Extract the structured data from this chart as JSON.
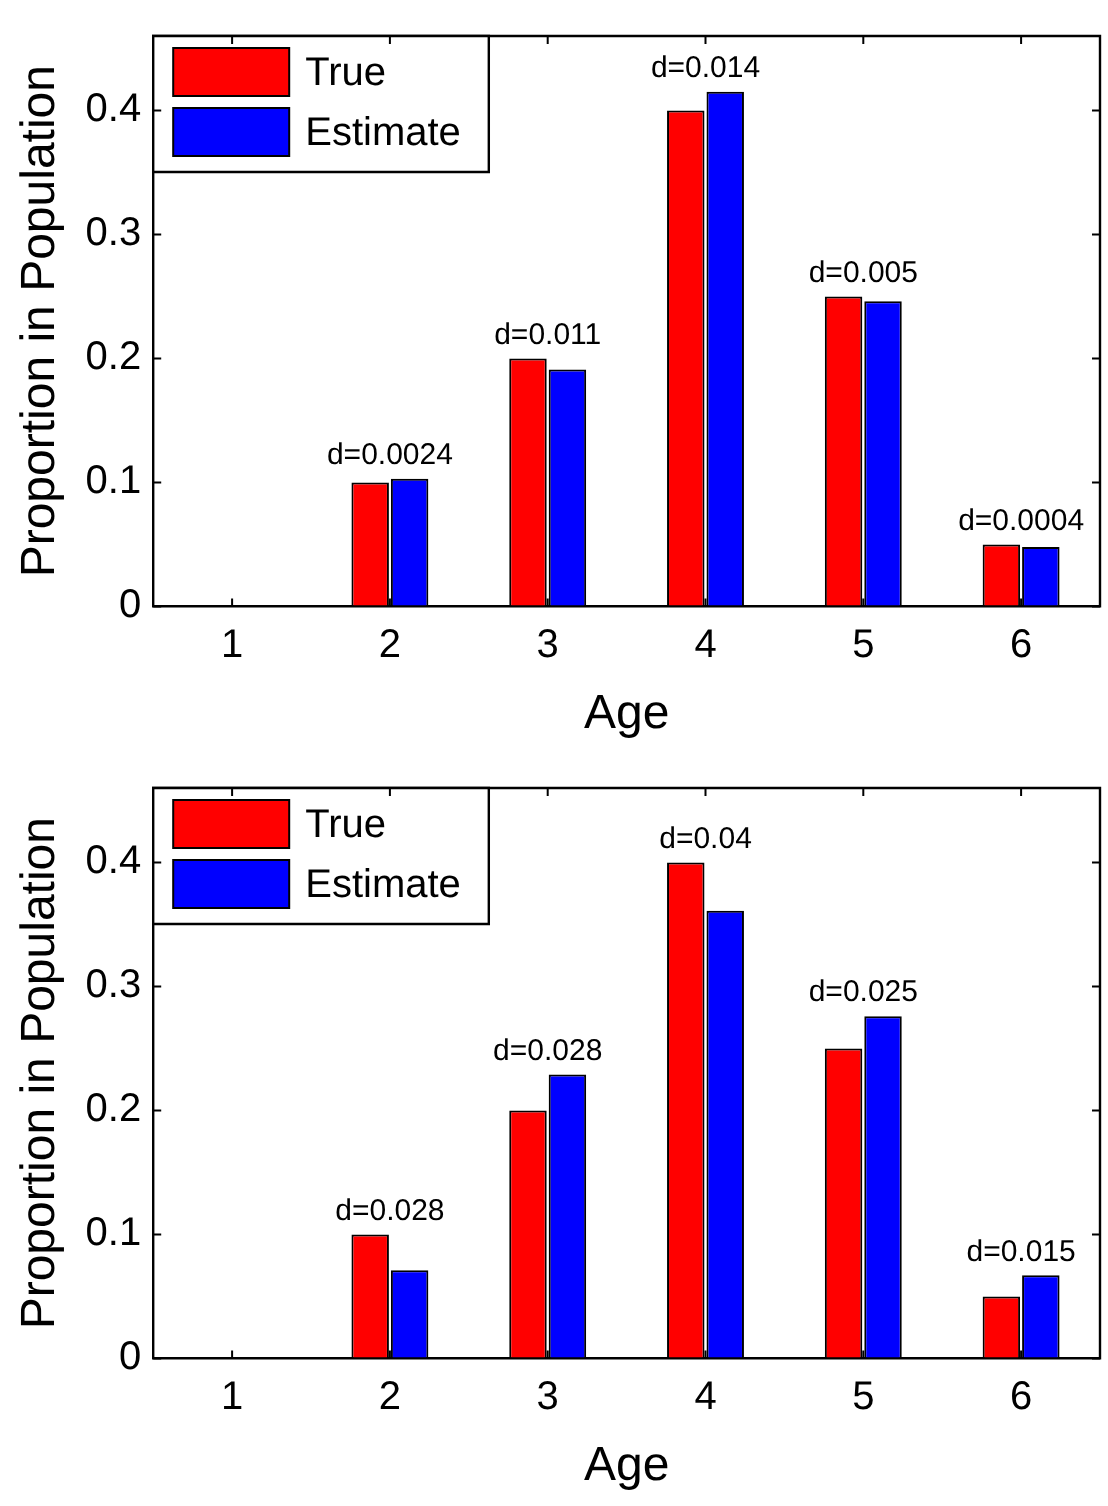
{
  "chart_data": [
    {
      "type": "bar",
      "xlabel": "Age",
      "ylabel": "Proportion in Population",
      "categories": [
        "1",
        "2",
        "3",
        "4",
        "5",
        "6"
      ],
      "series": [
        {
          "name": "True",
          "color": "#ff0000",
          "values": [
            0,
            0.1,
            0.2,
            0.4,
            0.25,
            0.05
          ]
        },
        {
          "name": "Estimate",
          "color": "#0000ff",
          "values": [
            0,
            0.103,
            0.191,
            0.415,
            0.246,
            0.048
          ]
        }
      ],
      "ylim": [
        0,
        0.46
      ],
      "yticks": [
        0,
        0.1,
        0.2,
        0.3,
        0.4
      ],
      "grid": false,
      "legend": "top left",
      "annotations": [
        {
          "text": "d=0.0024",
          "x": "2",
          "y": 0.103
        },
        {
          "text": "d=0.011",
          "x": "3",
          "y": 0.2
        },
        {
          "text": "d=0.014",
          "x": "4",
          "y": 0.415
        },
        {
          "text": "d=0.005",
          "x": "5",
          "y": 0.25
        },
        {
          "text": "d=0.0004",
          "x": "6",
          "y": 0.05
        }
      ]
    },
    {
      "type": "bar",
      "xlabel": "Age",
      "ylabel": "Proportion in Population",
      "categories": [
        "1",
        "2",
        "3",
        "4",
        "5",
        "6"
      ],
      "series": [
        {
          "name": "True",
          "color": "#ff0000",
          "values": [
            0,
            0.1,
            0.2,
            0.4,
            0.25,
            0.05
          ]
        },
        {
          "name": "Estimate",
          "color": "#0000ff",
          "values": [
            0,
            0.071,
            0.229,
            0.361,
            0.276,
            0.067
          ]
        }
      ],
      "ylim": [
        0,
        0.46
      ],
      "yticks": [
        0,
        0.1,
        0.2,
        0.3,
        0.4
      ],
      "grid": false,
      "legend": "top left",
      "annotations": [
        {
          "text": "d=0.028",
          "x": "2",
          "y": 0.1
        },
        {
          "text": "d=0.028",
          "x": "3",
          "y": 0.229
        },
        {
          "text": "d=0.04",
          "x": "4",
          "y": 0.4
        },
        {
          "text": "d=0.025",
          "x": "5",
          "y": 0.276
        },
        {
          "text": "d=0.015",
          "x": "6",
          "y": 0.067
        }
      ]
    }
  ]
}
